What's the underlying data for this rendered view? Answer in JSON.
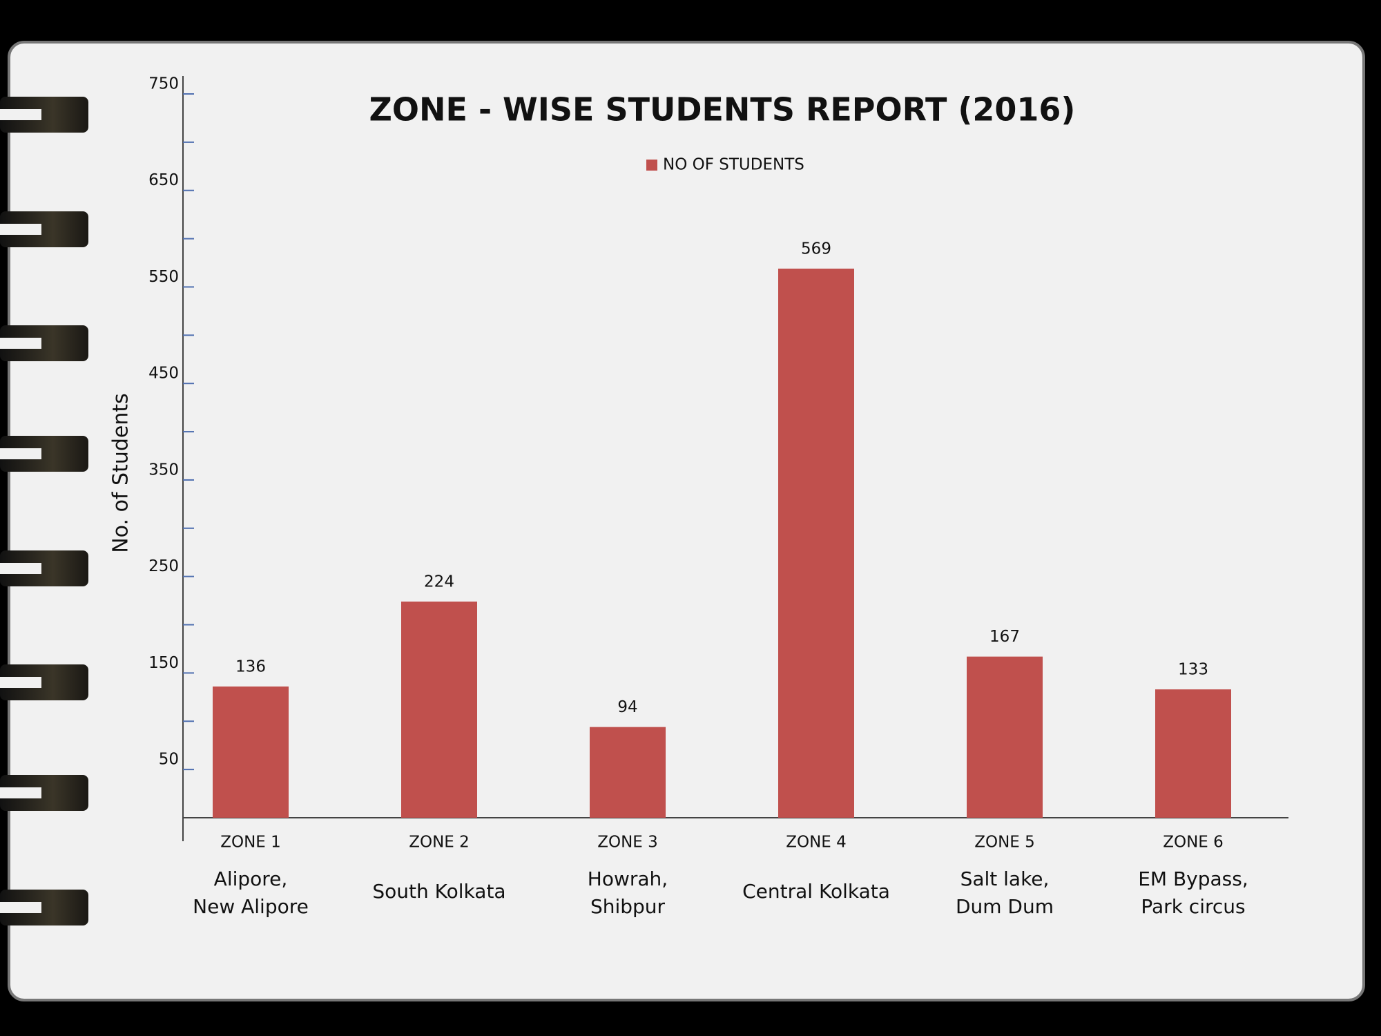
{
  "chart_data": {
    "type": "bar",
    "title": "ZONE - WISE STUDENTS REPORT (2016)",
    "y_label": "No. of Students",
    "categories": [
      "ZONE 1",
      "ZONE 2",
      "ZONE 3",
      "ZONE 4",
      "ZONE 5",
      "ZONE 6"
    ],
    "sublabels": [
      [
        "Alipore,",
        "New Alipore"
      ],
      [
        "South Kolkata"
      ],
      [
        "Howrah,",
        "Shibpur"
      ],
      [
        "Central Kolkata"
      ],
      [
        "Salt lake,",
        "Dum Dum"
      ],
      [
        "EM Bypass,",
        "Park circus"
      ]
    ],
    "series": [
      {
        "name": "NO OF STUDENTS",
        "color": "#c0504d",
        "values": [
          136,
          224,
          94,
          569,
          167,
          133
        ]
      }
    ],
    "ylim": [
      0,
      750
    ],
    "yticks": [
      50,
      150,
      250,
      350,
      450,
      550,
      650,
      750
    ],
    "minor_yticks": [
      100,
      200,
      300,
      400,
      500,
      600,
      700
    ],
    "legend": "top"
  }
}
